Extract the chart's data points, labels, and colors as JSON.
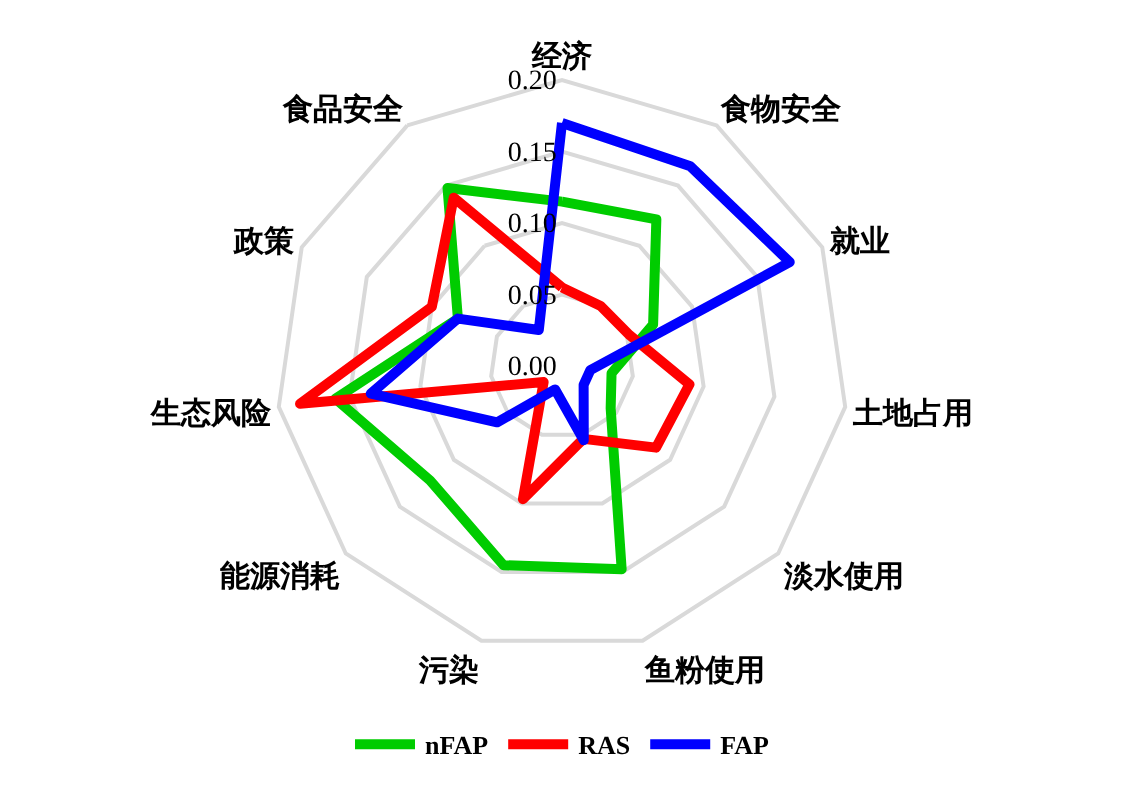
{
  "chart_data": {
    "type": "radar",
    "categories": [
      "经济",
      "食物安全",
      "就业",
      "土地占用",
      "淡水使用",
      "鱼粉使用",
      "污染",
      "能源消耗",
      "生态风险",
      "政策",
      "食品安全"
    ],
    "series": [
      {
        "name": "nFAP",
        "color": "#00cc00",
        "values": [
          0.115,
          0.122,
          0.07,
          0.035,
          0.045,
          0.148,
          0.145,
          0.122,
          0.16,
          0.08,
          0.148
        ]
      },
      {
        "name": "RAS",
        "color": "#ff0000",
        "values": [
          0.055,
          0.05,
          0.052,
          0.09,
          0.087,
          0.053,
          0.097,
          0.017,
          0.185,
          0.1,
          0.14
        ]
      },
      {
        "name": "FAP",
        "color": "#0000ff",
        "values": [
          0.17,
          0.166,
          0.175,
          0.02,
          0.02,
          0.054,
          0.017,
          0.06,
          0.135,
          0.08,
          0.03
        ]
      }
    ],
    "ylim": [
      0,
      0.2
    ],
    "yticks": [
      {
        "value": 0,
        "label": "0.00"
      },
      {
        "value": 0.05,
        "label": "0.05"
      },
      {
        "value": 0.1,
        "label": "0.10"
      },
      {
        "value": 0.15,
        "label": "0.15"
      },
      {
        "value": 0.2,
        "label": "0.20"
      }
    ],
    "grid": true,
    "legend": "bottom"
  }
}
